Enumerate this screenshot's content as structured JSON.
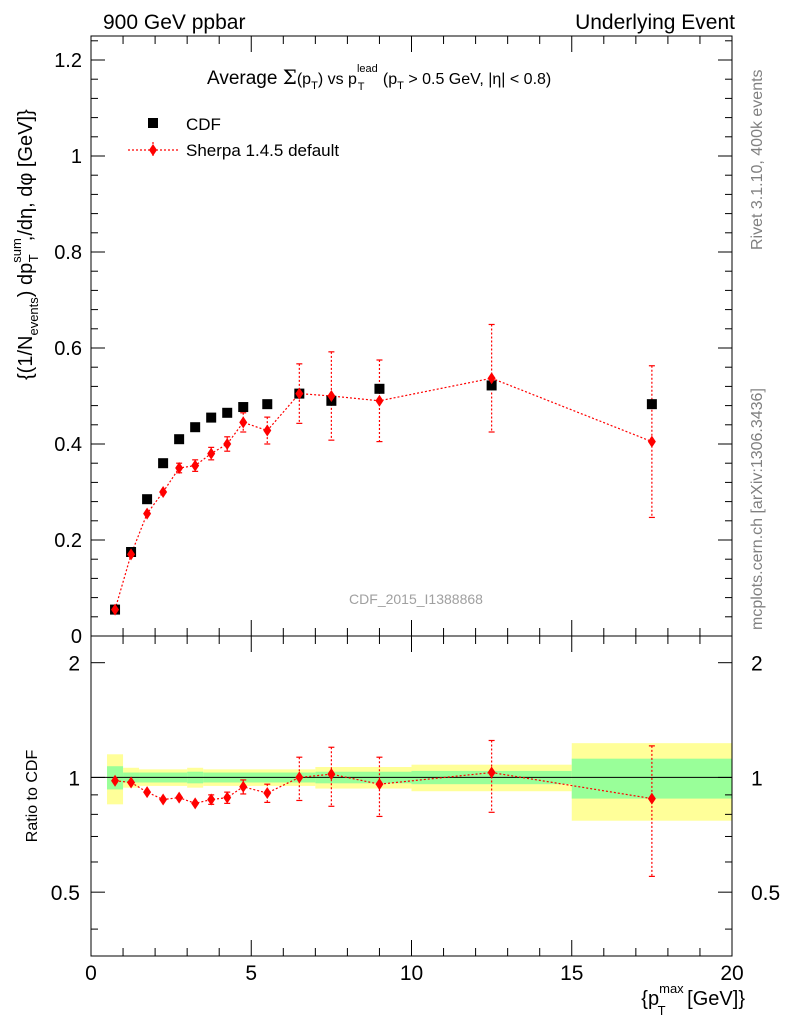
{
  "header": {
    "left": "900 GeV ppbar",
    "right": "Underlying Event",
    "side_top": "Rivet 3.1.10,  400k events",
    "side_bottom": "mcplots.cern.ch [arXiv:1306.3436]",
    "watermark": "CDF_2015_I1388868"
  },
  "chart_data": [
    {
      "type": "scatter",
      "panel": "main",
      "title": "Average Σ(pT) vs pT lead (pT > 0.5 GeV, |η| < 0.8)",
      "title_parts": {
        "prefix": "Average ",
        "sigma": "Σ",
        "paren1_open": "(p",
        "sub_T": "T",
        "paren1_close": ")",
        "vs": " vs p",
        "sup_lead": "lead",
        "cut_open": " (p",
        "cut_rest": " > 0.5 GeV, |η| < 0.8)"
      },
      "ylabel": "{(1/N_events) dp_T^sum/dη, dφ [GeV]}",
      "ylabel_parts": {
        "a": "{(1/N",
        "sub_events": "events",
        "b": ") dp",
        "sup_sum": "sum",
        "sub_T": "T",
        "c": ",/dη, dφ [GeV]}"
      },
      "xlim": [
        0,
        20
      ],
      "ylim": [
        0,
        1.25
      ],
      "y_ticks": [
        0,
        0.2,
        0.4,
        0.6,
        0.8,
        1,
        1.2
      ],
      "y_tick_labels": [
        "0",
        "0.2",
        "0.4",
        "0.6",
        "0.8",
        "1",
        "1.2"
      ],
      "legend": {
        "placement": "top-left",
        "entries": [
          "CDF",
          "Sherpa 1.4.5 default"
        ]
      },
      "series": [
        {
          "name": "CDF",
          "marker": "square",
          "color": "#000000",
          "x": [
            0.75,
            1.25,
            1.75,
            2.25,
            2.75,
            3.25,
            3.75,
            4.25,
            4.75,
            5.5,
            6.5,
            7.5,
            9.0,
            12.5,
            17.5
          ],
          "y": [
            0.055,
            0.175,
            0.285,
            0.36,
            0.41,
            0.435,
            0.455,
            0.465,
            0.477,
            0.483,
            0.505,
            0.49,
            0.515,
            0.522,
            0.483
          ]
        },
        {
          "name": "Sherpa 1.4.5 default",
          "marker": "diamond",
          "color": "#ff0000",
          "x": [
            0.75,
            1.25,
            1.75,
            2.25,
            2.75,
            3.25,
            3.75,
            4.25,
            4.75,
            5.5,
            6.5,
            7.5,
            9.0,
            12.5,
            17.5
          ],
          "y": [
            0.055,
            0.17,
            0.255,
            0.3,
            0.35,
            0.355,
            0.38,
            0.4,
            0.445,
            0.428,
            0.505,
            0.5,
            0.49,
            0.537,
            0.405
          ],
          "err": [
            0.004,
            0.005,
            0.006,
            0.008,
            0.01,
            0.012,
            0.013,
            0.015,
            0.02,
            0.028,
            0.062,
            0.092,
            0.085,
            0.112,
            0.158
          ]
        }
      ]
    },
    {
      "type": "scatter",
      "panel": "ratio",
      "ylabel": "Ratio to CDF",
      "xlabel": "{pT max [GeV]}",
      "xlabel_parts": {
        "open": "{p",
        "sup": "max",
        "sub": "T",
        "close": " [GeV]}"
      },
      "xlim": [
        0,
        20
      ],
      "ylim": [
        0.34,
        2.35
      ],
      "x_ticks": [
        0,
        5,
        10,
        15,
        20
      ],
      "x_tick_labels": [
        "0",
        "5",
        "10",
        "15",
        "20"
      ],
      "y_ticks": [
        0.5,
        1,
        2
      ],
      "y_tick_labels": [
        "0.5",
        "1",
        "2"
      ],
      "bands": [
        {
          "x0": 0.5,
          "x1": 1.0,
          "g_lo": 0.93,
          "g_hi": 1.07,
          "y_lo": 0.85,
          "y_hi": 1.15
        },
        {
          "x0": 1.0,
          "x1": 1.5,
          "g_lo": 0.97,
          "g_hi": 1.03,
          "y_lo": 0.94,
          "y_hi": 1.06
        },
        {
          "x0": 1.5,
          "x1": 3.0,
          "g_lo": 0.97,
          "g_hi": 1.03,
          "y_lo": 0.95,
          "y_hi": 1.05
        },
        {
          "x0": 3.0,
          "x1": 3.5,
          "g_lo": 0.965,
          "g_hi": 1.035,
          "y_lo": 0.94,
          "y_hi": 1.06
        },
        {
          "x0": 3.5,
          "x1": 7.0,
          "g_lo": 0.97,
          "g_hi": 1.03,
          "y_lo": 0.95,
          "y_hi": 1.05
        },
        {
          "x0": 7.0,
          "x1": 10.0,
          "g_lo": 0.965,
          "g_hi": 1.035,
          "y_lo": 0.935,
          "y_hi": 1.065
        },
        {
          "x0": 10.0,
          "x1": 15.0,
          "g_lo": 0.96,
          "g_hi": 1.04,
          "y_lo": 0.92,
          "y_hi": 1.08
        },
        {
          "x0": 15.0,
          "x1": 20.0,
          "g_lo": 0.88,
          "g_hi": 1.12,
          "y_lo": 0.77,
          "y_hi": 1.23
        }
      ],
      "series": [
        {
          "name": "Sherpa 1.4.5 default / CDF",
          "marker": "diamond",
          "color": "#ff0000",
          "x": [
            0.75,
            1.25,
            1.75,
            2.25,
            2.75,
            3.25,
            3.75,
            4.25,
            4.75,
            5.5,
            6.5,
            7.5,
            9.0,
            12.5,
            17.5
          ],
          "y": [
            0.98,
            0.97,
            0.915,
            0.875,
            0.885,
            0.855,
            0.875,
            0.885,
            0.945,
            0.91,
            1.0,
            1.02,
            0.96,
            1.03,
            0.88
          ],
          "err": [
            0.01,
            0.015,
            0.015,
            0.015,
            0.02,
            0.02,
            0.025,
            0.03,
            0.04,
            0.05,
            0.13,
            0.18,
            0.17,
            0.22,
            0.33
          ]
        }
      ]
    }
  ],
  "colors": {
    "band_yellow": "#ffff99",
    "band_green": "#99ff99",
    "cdf": "#000000",
    "sherpa": "#ff0000",
    "side_text": "#808080"
  }
}
